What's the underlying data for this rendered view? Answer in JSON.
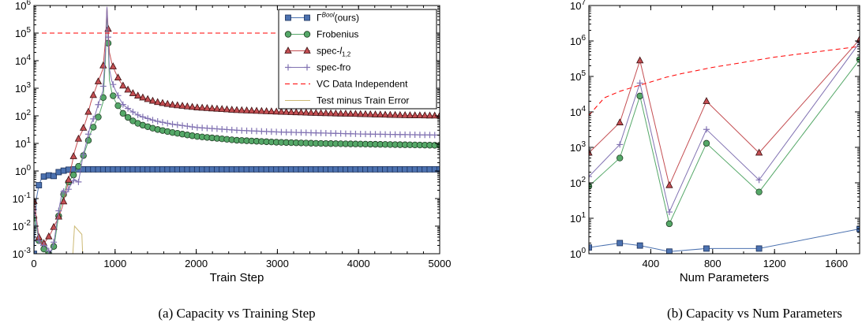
{
  "chart_data": [
    {
      "type": "line",
      "caption": "(a) Capacity vs Training Step",
      "xlabel": "Train Step",
      "ylabel": "",
      "xlim": [
        0,
        5000
      ],
      "ylim": [
        0.001,
        1000000
      ],
      "yscale": "log",
      "grid": false,
      "legend_position": "top-right",
      "xticks": [
        "0",
        "1000",
        "2000",
        "3000",
        "4000",
        "5000"
      ],
      "yticks": [
        {
          "base": "10",
          "exp": "-3"
        },
        {
          "base": "10",
          "exp": "-2"
        },
        {
          "base": "10",
          "exp": "-1"
        },
        {
          "base": "10",
          "exp": "0"
        },
        {
          "base": "10",
          "exp": "1"
        },
        {
          "base": "10",
          "exp": "2"
        },
        {
          "base": "10",
          "exp": "3"
        },
        {
          "base": "10",
          "exp": "4"
        },
        {
          "base": "10",
          "exp": "5"
        },
        {
          "base": "10",
          "exp": "6"
        }
      ],
      "legend": [
        {
          "label": "Γ",
          "sup": "Bool",
          "suffix": "(ours)",
          "color": "#4c72b0",
          "marker": "square",
          "dash": ""
        },
        {
          "label": "Frobenius",
          "color": "#55a868",
          "marker": "circle",
          "dash": ""
        },
        {
          "label": "spec-",
          "mathlabel": "l",
          "sub": "1,2",
          "color": "#c44e52",
          "marker": "triangle",
          "dash": ""
        },
        {
          "label": "spec-fro",
          "color": "#8172b2",
          "marker": "plus",
          "dash": ""
        },
        {
          "label": "VC Data Independent",
          "color": "#ff0000",
          "marker": "none",
          "dash": "6,4"
        },
        {
          "label": "Test minus Train Error",
          "color": "#ccb974",
          "marker": "none",
          "dash": ""
        }
      ],
      "series": [
        {
          "name": "Γ^Bool(ours)",
          "x": [
            0,
            30,
            60,
            100,
            140,
            180,
            220,
            260,
            300,
            400,
            500,
            700,
            1000,
            1500,
            2000,
            3000,
            4000,
            5000
          ],
          "y": [
            0.001,
            0.1,
            0.3,
            0.6,
            0.65,
            0.7,
            0.6,
            0.7,
            0.9,
            1.1,
            1.15,
            1.15,
            1.15,
            1.15,
            1.15,
            1.15,
            1.15,
            1.15
          ]
        },
        {
          "name": "Frobenius",
          "x": [
            0,
            30,
            60,
            100,
            150,
            200,
            250,
            300,
            350,
            400,
            450,
            500,
            550,
            600,
            650,
            700,
            750,
            800,
            850,
            880,
            900,
            930,
            960,
            1000,
            1050,
            1100,
            1200,
            1300,
            1500,
            1700,
            2000,
            2500,
            3000,
            3500,
            4000,
            4500,
            5000
          ],
          "y": [
            0.02,
            0.01,
            0.003,
            0.002,
            0.001,
            0.001,
            0.002,
            0.02,
            0.1,
            0.3,
            0.5,
            0.8,
            1.5,
            3,
            8,
            25,
            50,
            100,
            300,
            10000,
            800000,
            2000,
            700,
            350,
            200,
            120,
            70,
            50,
            33,
            25,
            18,
            13,
            11,
            10,
            9.5,
            9,
            8.5
          ]
        },
        {
          "name": "spec-l1,2",
          "x": [
            0,
            30,
            60,
            100,
            150,
            200,
            250,
            300,
            350,
            400,
            450,
            500,
            550,
            600,
            650,
            700,
            750,
            800,
            850,
            880,
            900,
            930,
            960,
            1000,
            1050,
            1100,
            1200,
            1300,
            1500,
            1700,
            2000,
            2500,
            3000,
            3500,
            4000,
            4500,
            5000
          ],
          "y": [
            0.08,
            0.02,
            0.004,
            0.002,
            0.003,
            0.005,
            0.01,
            0.02,
            0.05,
            0.2,
            1,
            5,
            15,
            30,
            80,
            300,
            800,
            2000,
            5000,
            50000,
            900000,
            20000,
            8000,
            4000,
            2000,
            1200,
            700,
            500,
            320,
            250,
            200,
            160,
            140,
            125,
            115,
            105,
            100
          ]
        },
        {
          "name": "spec-fro",
          "x": [
            0,
            30,
            60,
            100,
            150,
            200,
            250,
            300,
            350,
            400,
            450,
            500,
            550,
            600,
            650,
            700,
            750,
            800,
            850,
            880,
            900,
            930,
            960,
            1000,
            1050,
            1100,
            1200,
            1300,
            1500,
            1700,
            2000,
            2500,
            3000,
            3500,
            4000,
            4500,
            5000
          ],
          "y": [
            0.04,
            0.015,
            0.003,
            0.002,
            0.002,
            0.001,
            0.003,
            0.03,
            0.2,
            0.15,
            0.3,
            0.5,
            0.4,
            3,
            12,
            50,
            100,
            300,
            800,
            20000,
            900000,
            5000,
            1800,
            900,
            450,
            250,
            150,
            100,
            65,
            50,
            38,
            30,
            26,
            24,
            22,
            21,
            20
          ]
        },
        {
          "name": "VC Data Independent",
          "x": [
            0,
            5000
          ],
          "y": [
            100000,
            100000
          ]
        },
        {
          "name": "Test minus Train Error",
          "x": [
            480,
            500,
            590,
            600
          ],
          "y": [
            0.001,
            0.01,
            0.005,
            0.001
          ]
        }
      ]
    },
    {
      "type": "line",
      "caption": "(b) Capacity vs Num Parameters",
      "xlabel": "Num Parameters",
      "ylabel": "",
      "xlim": [
        0,
        1750
      ],
      "ylim": [
        1,
        10000000
      ],
      "yscale": "log",
      "grid": false,
      "xticks": [
        "400",
        "800",
        "1200",
        "1600"
      ],
      "yticks": [
        {
          "base": "10",
          "exp": "0"
        },
        {
          "base": "10",
          "exp": "1"
        },
        {
          "base": "10",
          "exp": "2"
        },
        {
          "base": "10",
          "exp": "3"
        },
        {
          "base": "10",
          "exp": "4"
        },
        {
          "base": "10",
          "exp": "5"
        },
        {
          "base": "10",
          "exp": "6"
        },
        {
          "base": "10",
          "exp": "7"
        }
      ],
      "series": [
        {
          "name": "Γ^Bool(ours)",
          "x": [
            0,
            200,
            330,
            520,
            760,
            1100,
            1750
          ],
          "y": [
            1.5,
            2,
            1.7,
            1.15,
            1.4,
            1.4,
            5
          ]
        },
        {
          "name": "Frobenius",
          "x": [
            0,
            200,
            330,
            520,
            760,
            1100,
            1750
          ],
          "y": [
            80,
            500,
            28000,
            7,
            1300,
            55,
            300000
          ]
        },
        {
          "name": "spec-l1,2",
          "x": [
            0,
            200,
            330,
            520,
            760,
            1100,
            1750
          ],
          "y": [
            700,
            5000,
            280000,
            85,
            20000,
            700,
            1100000
          ]
        },
        {
          "name": "spec-fro",
          "x": [
            0,
            200,
            330,
            520,
            760,
            1100,
            1750
          ],
          "y": [
            150,
            1200,
            65000,
            15,
            3200,
            120,
            900000
          ]
        },
        {
          "name": "VC Data Independent",
          "x": [
            0,
            100,
            200,
            300,
            400,
            500,
            600,
            800,
            1000,
            1200,
            1400,
            1600,
            1750
          ],
          "y": [
            8000,
            25000,
            38000,
            52000,
            70000,
            95000,
            120000,
            180000,
            250000,
            350000,
            450000,
            580000,
            700000
          ]
        }
      ]
    }
  ]
}
